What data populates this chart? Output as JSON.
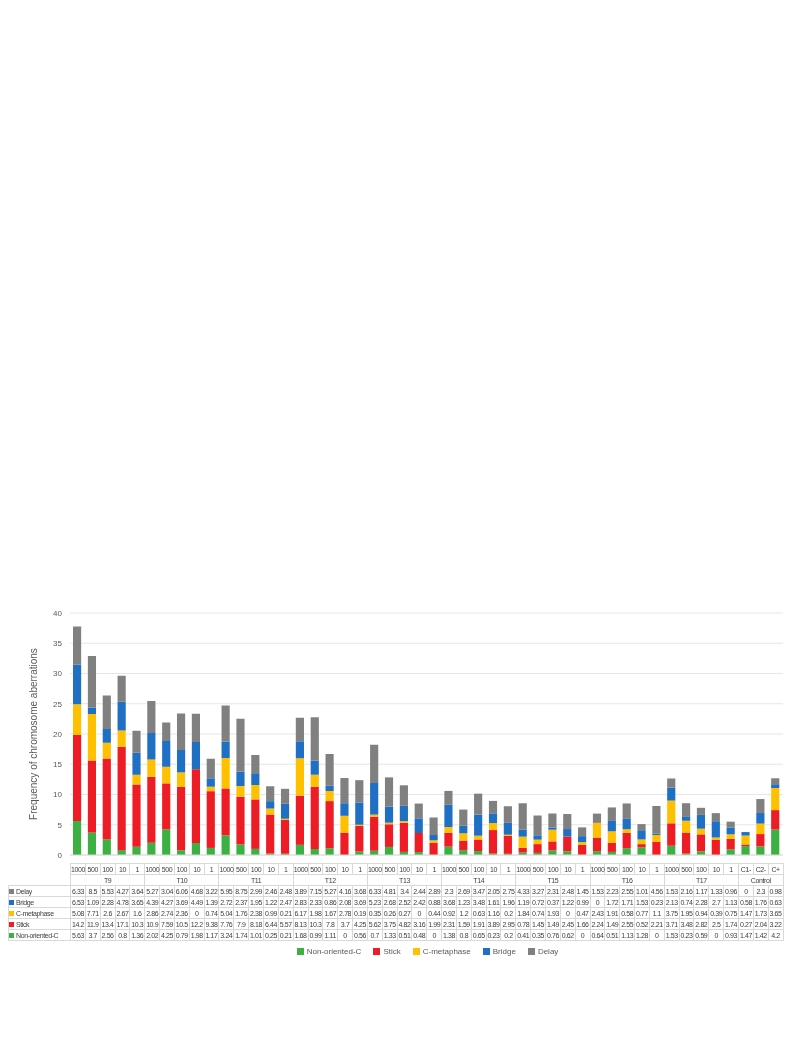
{
  "chart_data": {
    "type": "bar",
    "stacked": true,
    "ylabel": "Frequency of chromosome  aberrations",
    "categories": [
      "1000",
      "500",
      "100",
      "10",
      "1",
      "1000",
      "500",
      "100",
      "10",
      "1",
      "1000",
      "500",
      "100",
      "10",
      "1",
      "1000",
      "500",
      "100",
      "10",
      "1",
      "1000",
      "500",
      "100",
      "10",
      "1",
      "1000",
      "500",
      "100",
      "10",
      "1",
      "1000",
      "500",
      "100",
      "10",
      "1",
      "1000",
      "500",
      "100",
      "10",
      "1",
      "1000",
      "500",
      "100",
      "10",
      "1",
      "C1-",
      "C2-",
      "C+"
    ],
    "annotations": [
      "T9",
      "T10",
      "T11",
      "T12",
      "T13",
      "T14",
      "T15",
      "T16",
      "T17",
      "Control"
    ],
    "series": [
      {
        "name": "Non-oriented-C",
        "color": "#3cb043",
        "values": [
          5.63,
          3.7,
          2.56,
          0.8,
          1.36,
          2.02,
          4.25,
          0.79,
          1.98,
          1.17,
          3.24,
          1.74,
          1.01,
          0.25,
          0.21,
          1.68,
          0.99,
          1.11,
          0,
          0.56,
          0.7,
          1.33,
          0.51,
          0.48,
          0,
          1.38,
          0.8,
          0.65,
          0.23,
          0.2,
          0.41,
          0.35,
          0.76,
          0.62,
          0,
          0.64,
          0.51,
          1.13,
          1.28,
          0,
          1.53,
          0.23,
          0.59,
          0,
          0.93,
          1.47,
          1.42,
          4.2
        ]
      },
      {
        "name": "Stick",
        "color": "#ee1c25",
        "values": [
          14.2,
          11.9,
          13.4,
          17.1,
          10.3,
          10.9,
          7.59,
          10.5,
          12.2,
          9.38,
          7.76,
          7.9,
          8.18,
          6.44,
          5.57,
          8.13,
          10.3,
          7.8,
          3.7,
          4.25,
          5.62,
          3.75,
          4.82,
          3.16,
          1.99,
          2.31,
          1.59,
          1.91,
          3.89,
          2.95,
          0.78,
          1.45,
          1.49,
          2.45,
          1.66,
          2.24,
          1.49,
          2.55,
          0.52,
          2.21,
          3.71,
          3.48,
          2.82,
          2.5,
          1.74,
          0.27,
          2.04,
          3.22
        ]
      },
      {
        "name": "C-metaphase",
        "color": "#ffc000",
        "values": [
          5.08,
          7.71,
          2.6,
          2.67,
          1.6,
          2.86,
          2.74,
          2.36,
          0,
          0.74,
          5.04,
          1.76,
          2.38,
          0.99,
          0.21,
          6.17,
          1.98,
          1.67,
          2.78,
          0.19,
          0.35,
          0.26,
          0.27,
          0,
          0.44,
          0.92,
          1.2,
          0.63,
          1.16,
          0.2,
          1.84,
          0.74,
          1.93,
          0,
          0.47,
          2.43,
          1.91,
          0.58,
          0.77,
          1.1,
          3.75,
          1.95,
          0.94,
          0.39,
          0.75,
          1.47,
          1.73,
          3.65
        ]
      },
      {
        "name": "Bridge",
        "color": "#1f6fc5",
        "values": [
          6.53,
          1.09,
          2.28,
          4.78,
          3.65,
          4.39,
          4.27,
          3.69,
          4.49,
          1.39,
          2.72,
          2.37,
          1.95,
          1.22,
          2.47,
          2.83,
          2.33,
          0.86,
          2.08,
          3.69,
          5.23,
          2.68,
          2.52,
          2.42,
          0.88,
          3.68,
          1.23,
          3.48,
          1.61,
          1.96,
          1.19,
          0.72,
          0.37,
          1.22,
          0.99,
          0,
          1.72,
          1.71,
          1.53,
          0.23,
          2.13,
          0.74,
          2.28,
          2.7,
          1.13,
          0.58,
          1.76,
          0.63
        ]
      },
      {
        "name": "Delay",
        "color": "#808080",
        "values": [
          6.33,
          8.5,
          5.53,
          4.27,
          3.64,
          5.27,
          3.04,
          6.06,
          4.68,
          3.22,
          5.95,
          8.75,
          2.99,
          2.46,
          2.48,
          3.89,
          7.15,
          5.27,
          4.16,
          3.68,
          6.33,
          4.81,
          3.4,
          2.44,
          2.89,
          2.3,
          2.69,
          3.47,
          2.05,
          2.75,
          4.33,
          3.27,
          2.31,
          2.48,
          1.45,
          1.53,
          2.23,
          2.55,
          1.01,
          4.56,
          1.53,
          2.16,
          1.17,
          1.33,
          0.96,
          0,
          2.3,
          0.98
        ]
      }
    ],
    "ylim": [
      0,
      40
    ],
    "yticks": [
      0,
      5,
      10,
      15,
      20,
      25,
      30,
      35,
      40
    ],
    "grid": "y",
    "legend": "bottom",
    "data_labels": true
  }
}
